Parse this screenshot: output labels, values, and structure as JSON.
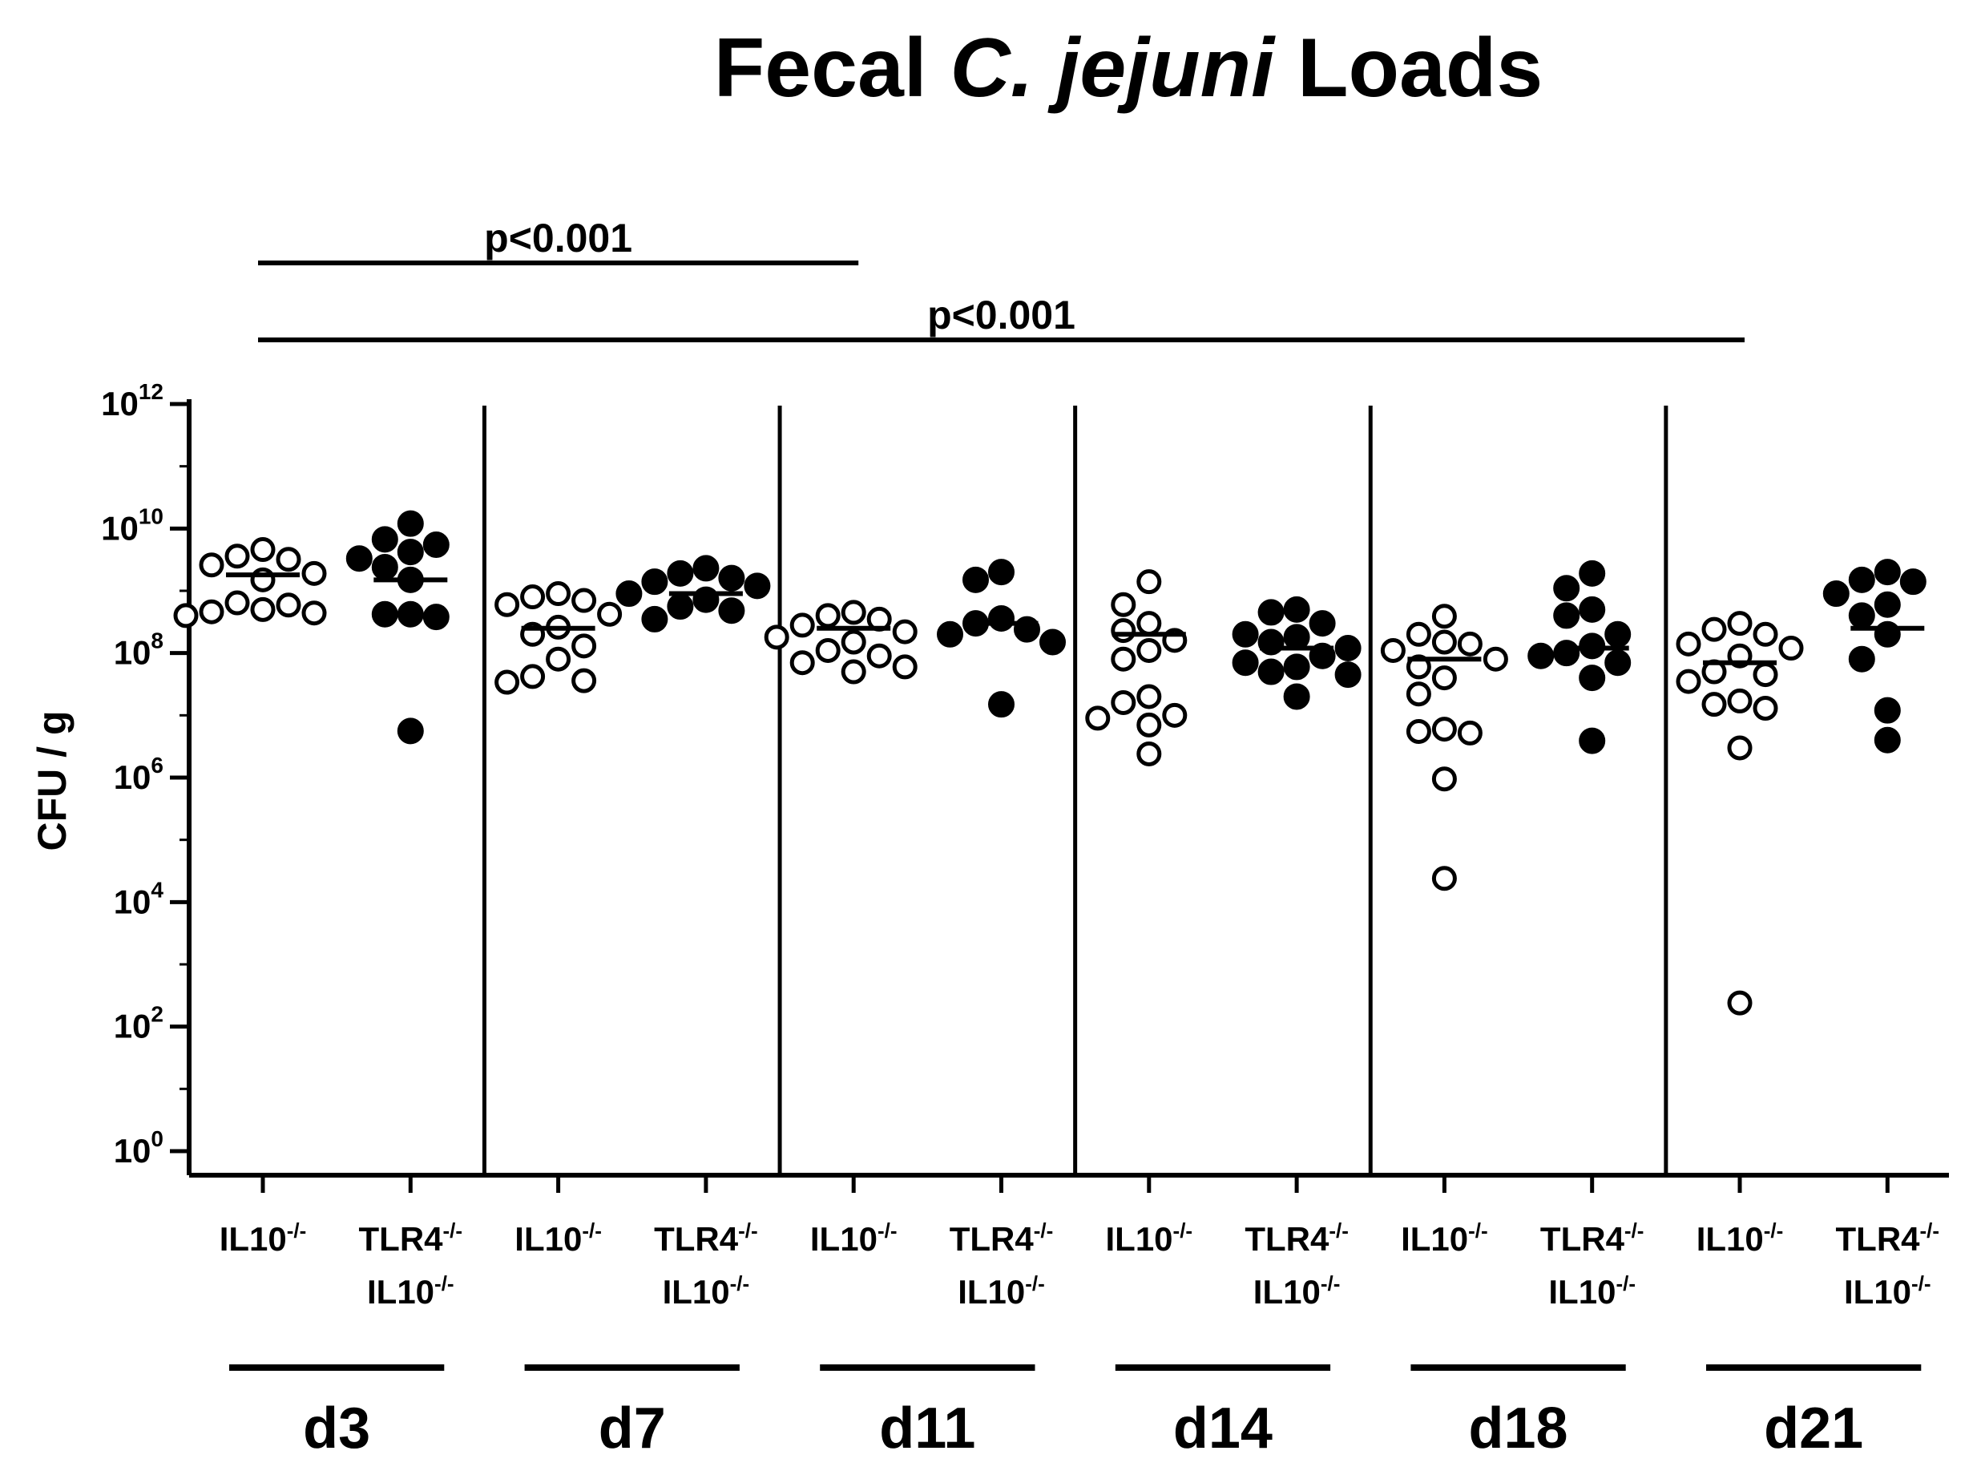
{
  "chart_data": {
    "type": "scatter",
    "title": {
      "prefix": "Fecal ",
      "italic": "C. jejuni",
      "suffix": " Loads"
    },
    "ylabel": "CFU / g",
    "yscale": "log",
    "ylim": [
      1,
      1000000000000
    ],
    "y_ticks": [
      {
        "base": "10",
        "exp": "0",
        "value": 1
      },
      {
        "base": "10",
        "exp": "2",
        "value": 100
      },
      {
        "base": "10",
        "exp": "4",
        "value": 10000
      },
      {
        "base": "10",
        "exp": "6",
        "value": 1000000
      },
      {
        "base": "10",
        "exp": "8",
        "value": 100000000
      },
      {
        "base": "10",
        "exp": "10",
        "value": 10000000000
      },
      {
        "base": "10",
        "exp": "12",
        "value": 1000000000000
      }
    ],
    "genotypes": {
      "il10": {
        "line1": "IL10",
        "sup1": "-/-"
      },
      "tlr4": {
        "line1": "TLR4",
        "sup1": "-/-",
        "line2": "IL10",
        "sup2": "-/-"
      }
    },
    "marker_styles": {
      "il10": "open-circle",
      "tlr4": "filled-circle"
    },
    "groups": [
      {
        "day": "d3",
        "genotype": "il10",
        "points": [
          4600000000.0,
          3200000000.0,
          3600000000.0,
          2600000000.0,
          1900000000.0,
          1500000000.0,
          640000000.0,
          590000000.0,
          500000000.0,
          460000000.0,
          440000000.0,
          400000000.0
        ],
        "median": 1800000000.0
      },
      {
        "day": "d3",
        "genotype": "tlr4",
        "points": [
          12000000000.0,
          6700000000.0,
          5500000000.0,
          4200000000.0,
          3300000000.0,
          2400000000.0,
          1500000000.0,
          420000000.0,
          380000000.0,
          420000000.0,
          5600000.0
        ],
        "median": 1500000000.0
      },
      {
        "day": "d7",
        "genotype": "il10",
        "points": [
          900000000.0,
          800000000.0,
          700000000.0,
          600000000.0,
          420000000.0,
          260000000.0,
          200000000.0,
          130000000.0,
          80000000.0,
          42000000.0,
          34000000.0,
          36000000.0
        ],
        "median": 250000000.0
      },
      {
        "day": "d7",
        "genotype": "tlr4",
        "points": [
          2300000000.0,
          1900000000.0,
          1600000000.0,
          1400000000.0,
          1200000000.0,
          900000000.0,
          720000000.0,
          560000000.0,
          480000000.0,
          350000000.0
        ],
        "median": 900000000.0
      },
      {
        "day": "d11",
        "genotype": "il10",
        "points": [
          450000000.0,
          400000000.0,
          350000000.0,
          280000000.0,
          220000000.0,
          180000000.0,
          150000000.0,
          110000000.0,
          90000000.0,
          70000000.0,
          60000000.0,
          50000000.0
        ],
        "median": 250000000.0
      },
      {
        "day": "d11",
        "genotype": "tlr4",
        "points": [
          2000000000.0,
          1500000000.0,
          360000000.0,
          300000000.0,
          240000000.0,
          200000000.0,
          150000000.0,
          15000000.0
        ],
        "median": 300000000.0
      },
      {
        "day": "d14",
        "genotype": "il10",
        "points": [
          1400000000.0,
          600000000.0,
          300000000.0,
          230000000.0,
          160000000.0,
          110000000.0,
          80000000.0,
          20000000.0,
          16000000.0,
          10000000.0,
          9000000.0,
          7000000.0,
          2400000.0
        ],
        "median": 200000000.0
      },
      {
        "day": "d14",
        "genotype": "tlr4",
        "points": [
          500000000.0,
          450000000.0,
          300000000.0,
          200000000.0,
          180000000.0,
          150000000.0,
          120000000.0,
          90000000.0,
          70000000.0,
          60000000.0,
          50000000.0,
          45000000.0,
          20000000.0
        ],
        "median": 120000000.0
      },
      {
        "day": "d18",
        "genotype": "il10",
        "points": [
          390000000.0,
          200000000.0,
          150000000.0,
          140000000.0,
          110000000.0,
          80000000.0,
          60000000.0,
          40000000.0,
          22000000.0,
          5500000.0,
          5200000.0,
          6000000.0,
          950000.0,
          24000.0
        ],
        "median": 80000000.0
      },
      {
        "day": "d18",
        "genotype": "tlr4",
        "points": [
          1900000000.0,
          1100000000.0,
          500000000.0,
          400000000.0,
          200000000.0,
          130000000.0,
          100000000.0,
          90000000.0,
          70000000.0,
          40000000.0,
          3900000.0
        ],
        "median": 120000000.0
      },
      {
        "day": "d21",
        "genotype": "il10",
        "points": [
          300000000.0,
          240000000.0,
          200000000.0,
          140000000.0,
          120000000.0,
          90000000.0,
          50000000.0,
          45000000.0,
          35000000.0,
          15000000.0,
          13000000.0,
          17000000.0,
          3000000.0,
          240.0
        ],
        "median": 70000000.0
      },
      {
        "day": "d21",
        "genotype": "tlr4",
        "points": [
          2000000000.0,
          1500000000.0,
          1400000000.0,
          900000000.0,
          600000000.0,
          400000000.0,
          200000000.0,
          80000000.0,
          12000000.0,
          4000000.0
        ],
        "median": 250000000.0
      }
    ],
    "days": [
      "d3",
      "d7",
      "d11",
      "d14",
      "d18",
      "d21"
    ],
    "comparisons": [
      {
        "label": "p<0.001",
        "from_group": 0,
        "to_group": 4
      },
      {
        "label": "p<0.001",
        "from_group": 0,
        "to_group": 10
      }
    ]
  }
}
